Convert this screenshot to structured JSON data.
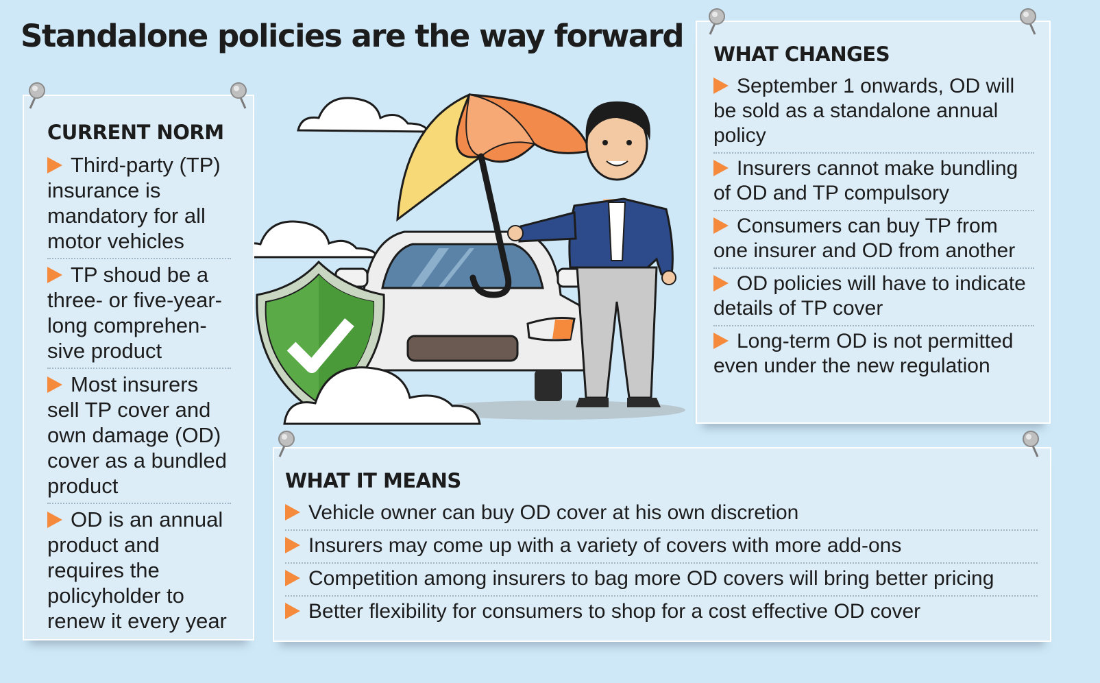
{
  "title": "Standalone policies are the way forward",
  "current_norm": {
    "heading": "CURRENT NORM",
    "items": [
      "Third-party (TP) insurance is mandatory for all motor vehicles",
      "TP shoud be a three- or five-year-long comprehen-sive product",
      "Most insurers sell TP cover and own damage (OD) cover as a bundled product",
      "OD is an annual product and requires the policyholder to renew it every year"
    ]
  },
  "what_changes": {
    "heading": "WHAT CHANGES",
    "items": [
      "September 1 onwards, OD will be sold as a standalone annual policy",
      "Insurers cannot make bundling of OD and TP compulsory",
      "Consumers can buy TP from one insurer and OD from another",
      "OD policies will have to indicate details of TP cover",
      "Long-term OD is not permitted even under the new regulation"
    ]
  },
  "what_it_means": {
    "heading": "WHAT IT MEANS",
    "items": [
      "Vehicle owner can buy OD cover at his own discretion",
      "Insurers may come up with a variety of covers with more add-ons",
      "Competition among insurers to bag more OD covers will bring better pricing",
      "Better flexibility for consumers to shop for a cost effective OD cover"
    ]
  },
  "colors": {
    "background": "#cfe8f7",
    "card": "#dcedf8",
    "bullet": "#f58a3c",
    "shield": "#5aab48",
    "umbrella_orange": "#f28a4c",
    "umbrella_yellow": "#f7d977",
    "suit": "#2d4a8a"
  },
  "icons": [
    "pushpin-icon",
    "bullet-triangle-icon",
    "shield-check-icon",
    "umbrella-icon",
    "car-icon",
    "cloud-icon",
    "person-icon"
  ]
}
